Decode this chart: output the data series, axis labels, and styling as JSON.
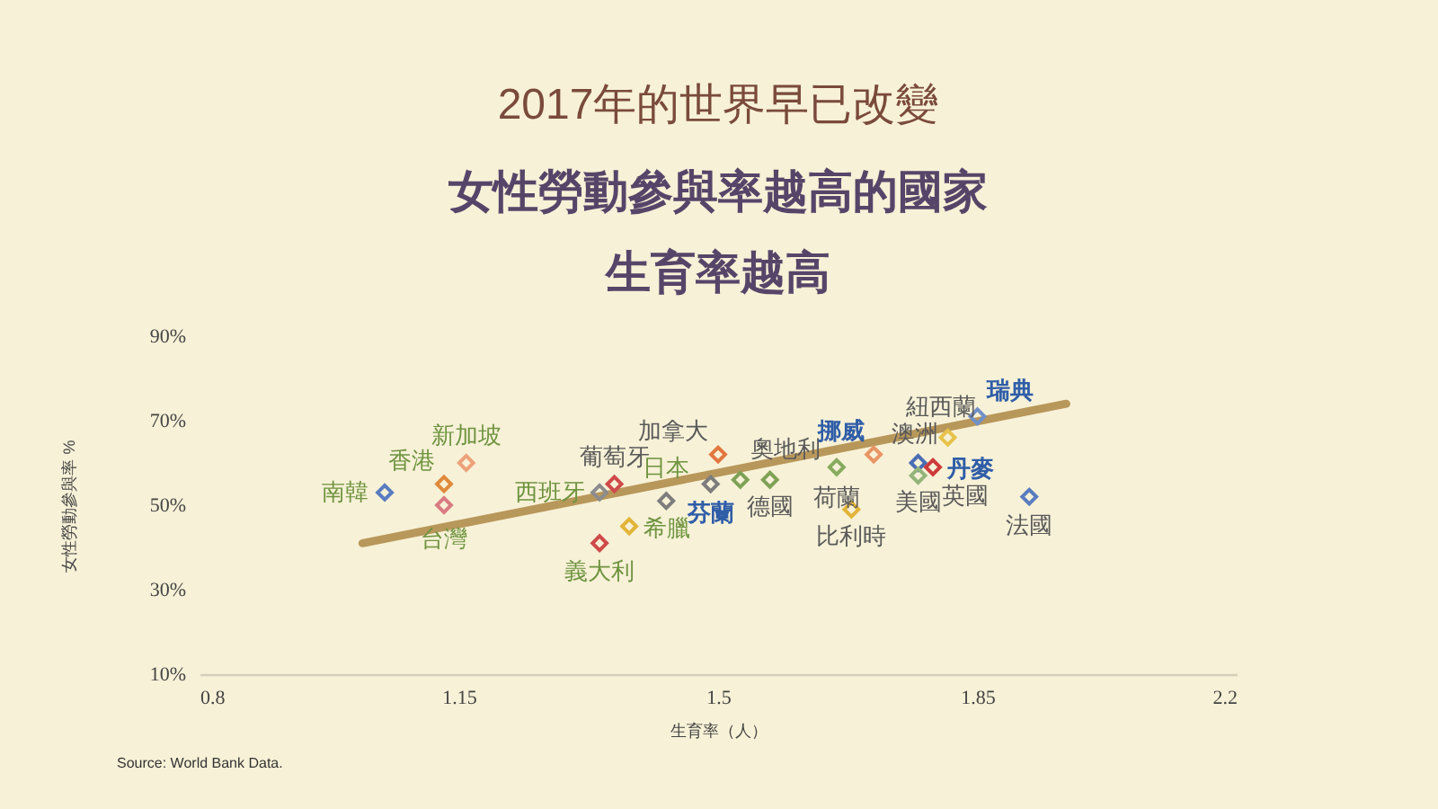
{
  "chart_data": {
    "type": "scatter",
    "title": "2017年的世界早已改變",
    "subtitle": "女性勞動參與率越高的國家生育率越高",
    "xlabel": "生育率（人）",
    "ylabel": "女性勞動參與率 %",
    "xlim": [
      0.8,
      2.2
    ],
    "xticks": [
      0.8,
      1.15,
      1.5,
      1.85,
      2.2
    ],
    "ylim": [
      10,
      90
    ],
    "yticks": [
      {
        "value": 10,
        "label": "10%"
      },
      {
        "value": 30,
        "label": "30%"
      },
      {
        "value": 50,
        "label": "50%"
      },
      {
        "value": 70,
        "label": "70%"
      },
      {
        "value": 90,
        "label": "90%"
      }
    ],
    "grid": false,
    "marker": "diamond",
    "series": [
      {
        "x": [
          1.05,
          1.13,
          1.13,
          1.16,
          1.34,
          1.36,
          1.34,
          1.38,
          1.43,
          1.5,
          1.49,
          1.53,
          1.57,
          1.66,
          1.71,
          1.68,
          1.77,
          1.77,
          1.79,
          1.81,
          1.85,
          1.92
        ],
        "values": [
          53,
          55,
          50,
          60,
          53,
          55,
          41,
          45,
          51,
          62,
          55,
          56,
          56,
          59,
          62,
          49,
          60,
          57,
          59,
          66,
          71,
          52
        ],
        "colors": [
          "#5a7cc0",
          "#e08a3c",
          "#d97b82",
          "#eda27a",
          "#8c8c8c",
          "#cf4a4a",
          "#cf4a4a",
          "#e2b43a",
          "#7d7d7d",
          "#e2773f",
          "#7d7d7d",
          "#7ea255",
          "#7ea255",
          "#86ab5e",
          "#e99464",
          "#e2b43a",
          "#4a6db4",
          "#93b47a",
          "#cc3a3a",
          "#e6c24a",
          "#7290c8",
          "#5a7cc0"
        ]
      },
      {
        "type": "line",
        "marker": "none",
        "line_style": "solid",
        "x": [
          1.02,
          1.97
        ],
        "values": [
          41,
          74
        ],
        "color": "#b8975a"
      }
    ],
    "annotations": [
      "Source: World Bank Data.",
      {
        "text": "南韓",
        "x": 1.05,
        "y": 53
      },
      {
        "text": "香港",
        "x": 1.13,
        "y": 55
      },
      {
        "text": "台灣",
        "x": 1.13,
        "y": 50
      },
      {
        "text": "新加坡",
        "x": 1.16,
        "y": 60
      },
      {
        "text": "西班牙",
        "x": 1.34,
        "y": 53
      },
      {
        "text": "葡萄牙",
        "x": 1.36,
        "y": 55
      },
      {
        "text": "義大利",
        "x": 1.34,
        "y": 41
      },
      {
        "text": "希臘",
        "x": 1.38,
        "y": 45
      },
      {
        "text": "日本",
        "x": 1.43,
        "y": 51
      },
      {
        "text": "加拿大",
        "x": 1.5,
        "y": 62
      },
      {
        "text": "芬蘭",
        "x": 1.49,
        "y": 55
      },
      {
        "text": "奧地利",
        "x": 1.53,
        "y": 56
      },
      {
        "text": "德國",
        "x": 1.57,
        "y": 56
      },
      {
        "text": "荷蘭",
        "x": 1.66,
        "y": 59
      },
      {
        "text": "挪威",
        "x": 1.71,
        "y": 62
      },
      {
        "text": "比利時",
        "x": 1.68,
        "y": 49
      },
      {
        "text": "澳洲",
        "x": 1.77,
        "y": 60
      },
      {
        "text": "美國",
        "x": 1.77,
        "y": 57
      },
      {
        "text": "丹麥",
        "x": 1.79,
        "y": 59
      },
      {
        "text": "英國",
        "x": 1.79,
        "y": 59
      },
      {
        "text": "紐西蘭",
        "x": 1.81,
        "y": 66
      },
      {
        "text": "瑞典",
        "x": 1.85,
        "y": 71
      },
      {
        "text": "法國",
        "x": 1.92,
        "y": 52
      }
    ]
  }
}
